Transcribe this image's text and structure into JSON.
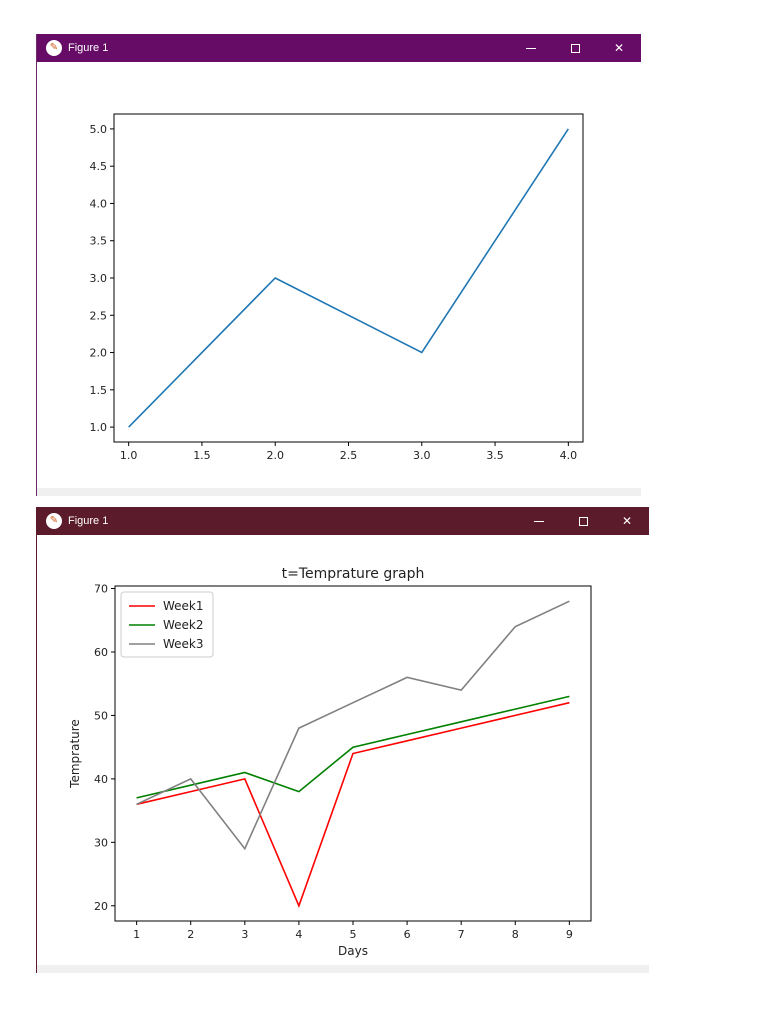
{
  "windows": [
    {
      "title": "Figure 1",
      "controls": {
        "minimize": "—",
        "close": "✕"
      }
    },
    {
      "title": "Figure 1",
      "controls": {
        "minimize": "—",
        "close": "✕"
      }
    }
  ],
  "colors": {
    "titlebar_top": "#660c66",
    "titlebar_bottom": "#5b1b2b",
    "series_blue": "#1f77b4",
    "week1": "#ff0000",
    "week2": "#008000",
    "week3": "#808080"
  },
  "chart_data": [
    {
      "type": "line",
      "title": "",
      "xlabel": "",
      "ylabel": "",
      "xlim": [
        0.9,
        4.1
      ],
      "ylim": [
        0.8,
        5.2
      ],
      "xticks": [
        1.0,
        1.5,
        2.0,
        2.5,
        3.0,
        3.5,
        4.0
      ],
      "xtick_labels": [
        "1.0",
        "1.5",
        "2.0",
        "2.5",
        "3.0",
        "3.5",
        "4.0"
      ],
      "yticks": [
        1.0,
        1.5,
        2.0,
        2.5,
        3.0,
        3.5,
        4.0,
        4.5,
        5.0
      ],
      "ytick_labels": [
        "1.0",
        "1.5",
        "2.0",
        "2.5",
        "3.0",
        "3.5",
        "4.0",
        "4.5",
        "5.0"
      ],
      "series": [
        {
          "x": [
            1,
            2,
            3,
            4
          ],
          "values": [
            1,
            3,
            2,
            5
          ],
          "color": "#1f77b4"
        }
      ],
      "legend": null
    },
    {
      "type": "line",
      "title": "t=Temprature graph",
      "xlabel": "Days",
      "ylabel": "Temprature",
      "xlim": [
        0.6,
        9.4
      ],
      "ylim": [
        17.6,
        70.4
      ],
      "xticks": [
        1,
        2,
        3,
        4,
        5,
        6,
        7,
        8,
        9
      ],
      "xtick_labels": [
        "1",
        "2",
        "3",
        "4",
        "5",
        "6",
        "7",
        "8",
        "9"
      ],
      "yticks": [
        20,
        30,
        40,
        50,
        60,
        70
      ],
      "ytick_labels": [
        "20",
        "30",
        "40",
        "50",
        "60",
        "70"
      ],
      "series": [
        {
          "name": "Week1",
          "x": [
            1,
            2,
            3,
            4,
            5,
            6,
            7,
            8,
            9
          ],
          "values": [
            36,
            38,
            40,
            20,
            44,
            46,
            48,
            50,
            52
          ],
          "color": "#ff0000"
        },
        {
          "name": "Week2",
          "x": [
            1,
            2,
            3,
            4,
            5,
            6,
            7,
            8,
            9
          ],
          "values": [
            37,
            39,
            41,
            38,
            45,
            47,
            49,
            51,
            53
          ],
          "color": "#008000"
        },
        {
          "name": "Week3",
          "x": [
            1,
            2,
            3,
            4,
            5,
            6,
            7,
            8,
            9
          ],
          "values": [
            36,
            40,
            29,
            48,
            52,
            56,
            54,
            64,
            68
          ],
          "color": "#808080"
        }
      ],
      "legend": "top-left"
    }
  ]
}
